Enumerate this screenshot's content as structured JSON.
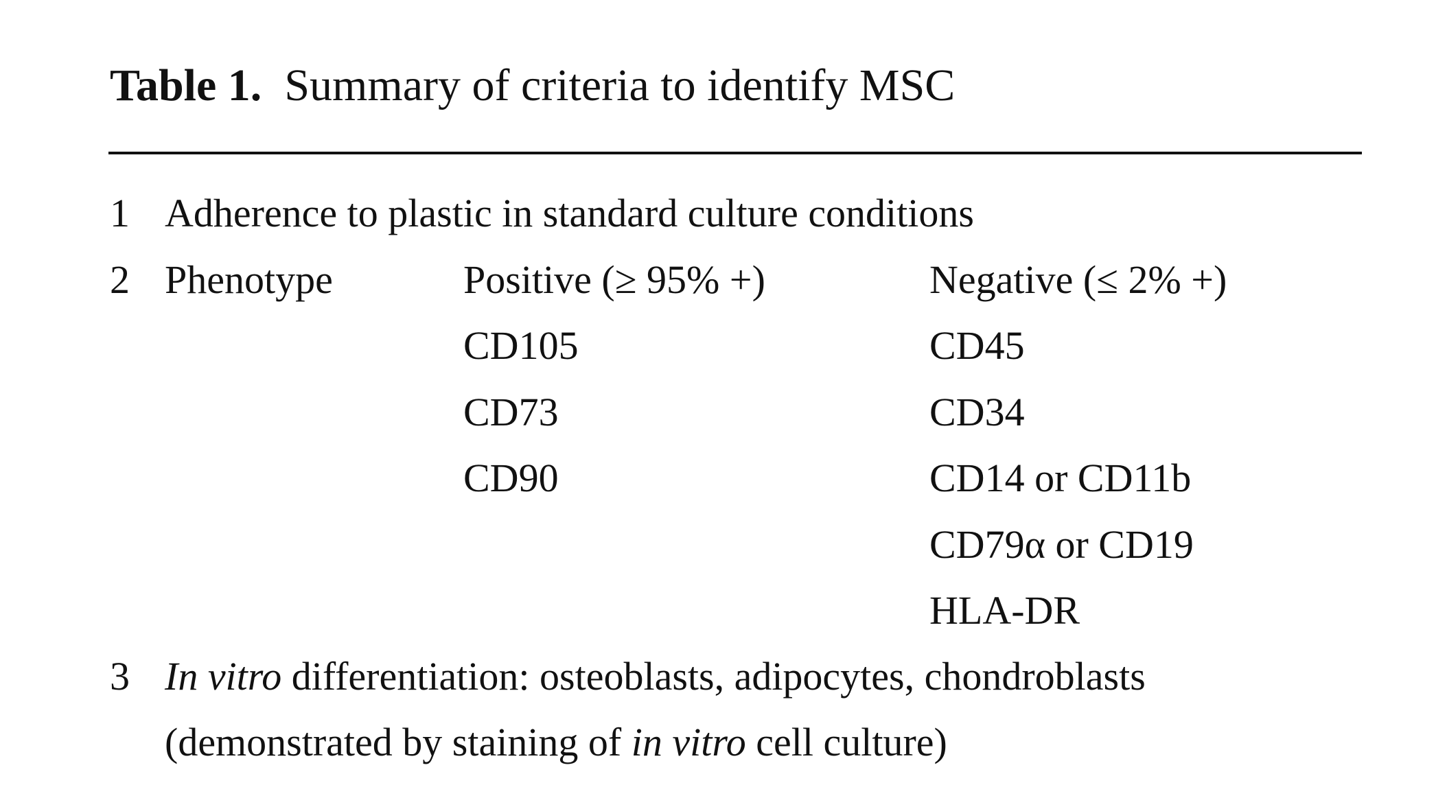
{
  "header": {
    "label": "Table 1.",
    "title": "Summary of criteria to identify MSC"
  },
  "table": {
    "rows": [
      {
        "number": "1",
        "text": "Adherence to plastic in standard culture conditions"
      },
      {
        "number": "2",
        "label": "Phenotype",
        "positive_header": "Positive (≥ 95% +)",
        "negative_header": "Negative (≤ 2% +)",
        "positive": [
          "CD105",
          "CD73",
          "CD90"
        ],
        "negative": [
          "CD45",
          "CD34",
          "CD14 or CD11b",
          "CD79α or CD19",
          "HLA-DR"
        ]
      },
      {
        "number": "3",
        "lines": [
          [
            "In vitro",
            " differentiation: osteoblasts, adipocytes, chondroblasts"
          ],
          [
            "(demonstrated by staining of ",
            "in vitro",
            " cell culture)"
          ]
        ]
      }
    ]
  }
}
